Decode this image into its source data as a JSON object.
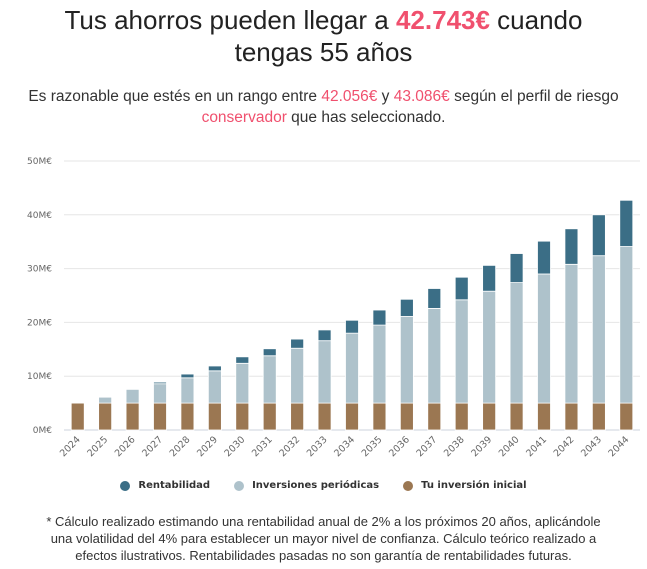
{
  "headline": {
    "prefix": "Tus ahorros pueden llegar a ",
    "amount": "42.743€",
    "suffix_line1": " cuando",
    "line2": "tengas 55 años"
  },
  "range_text": {
    "part1": "Es razonable que estés en un rango entre ",
    "low": "42.056€",
    "part2": " y ",
    "high": "43.086€",
    "part3": " según el perfil de riesgo",
    "profile": "conservador",
    "part4": " que has seleccionado."
  },
  "colors": {
    "accent": "#f0506e",
    "rentabilidad": "#3b6e86",
    "inversiones_periodicas": "#aec2cb",
    "inversion_inicial": "#9b7752",
    "grid": "#e6e6e6"
  },
  "chart_data": {
    "type": "bar",
    "stacked": true,
    "title": "",
    "xlabel": "",
    "ylabel": "",
    "ylim": [
      0,
      50
    ],
    "yticks": [
      "0M€",
      "10M€",
      "20M€",
      "30M€",
      "40M€",
      "50M€"
    ],
    "ytick_values": [
      0,
      10,
      20,
      30,
      40,
      50
    ],
    "grid": true,
    "legend_position": "bottom",
    "categories": [
      "2024",
      "2025",
      "2026",
      "2027",
      "2028",
      "2029",
      "2030",
      "2031",
      "2032",
      "2033",
      "2034",
      "2035",
      "2036",
      "2037",
      "2038",
      "2039",
      "2040",
      "2041",
      "2042",
      "2043",
      "2044"
    ],
    "series": [
      {
        "name": "Tu inversión inicial",
        "color_key": "inversion_inicial",
        "values": [
          5,
          5,
          5,
          5,
          5,
          5,
          5,
          5,
          5,
          5,
          5,
          5,
          5,
          5,
          5,
          5,
          5,
          5,
          5,
          5,
          5
        ]
      },
      {
        "name": "Inversiones periódicas",
        "color_key": "inversiones_periodicas",
        "values": [
          0,
          1.1,
          2.6,
          3.6,
          4.7,
          6.0,
          7.4,
          8.8,
          10.2,
          11.6,
          13.0,
          14.5,
          16.1,
          17.6,
          19.2,
          20.8,
          22.4,
          24.0,
          25.8,
          27.4,
          29.1
        ]
      },
      {
        "name": "Rentabilidad",
        "color_key": "rentabilidad",
        "values": [
          0,
          0,
          0.1,
          0.3,
          0.7,
          0.9,
          1.2,
          1.3,
          1.7,
          2.0,
          2.4,
          2.8,
          3.2,
          3.7,
          4.2,
          4.8,
          5.4,
          6.1,
          6.6,
          7.6,
          8.6
        ]
      }
    ]
  },
  "legend": [
    {
      "label": "Rentabilidad",
      "color_key": "rentabilidad"
    },
    {
      "label": "Inversiones periódicas",
      "color_key": "inversiones_periodicas"
    },
    {
      "label": "Tu inversión inicial",
      "color_key": "inversion_inicial"
    }
  ],
  "footnote": {
    "line1": "* Cálculo realizado estimando una rentabilidad anual de 2% a los próximos 20 años, aplicándole",
    "line2": "una volatilidad del 4% para establecer un mayor nivel de confianza. Cálculo teórico realizado a",
    "line3": "efectos ilustrativos. Rentabilidades pasadas no son garantía de rentabilidades futuras."
  }
}
